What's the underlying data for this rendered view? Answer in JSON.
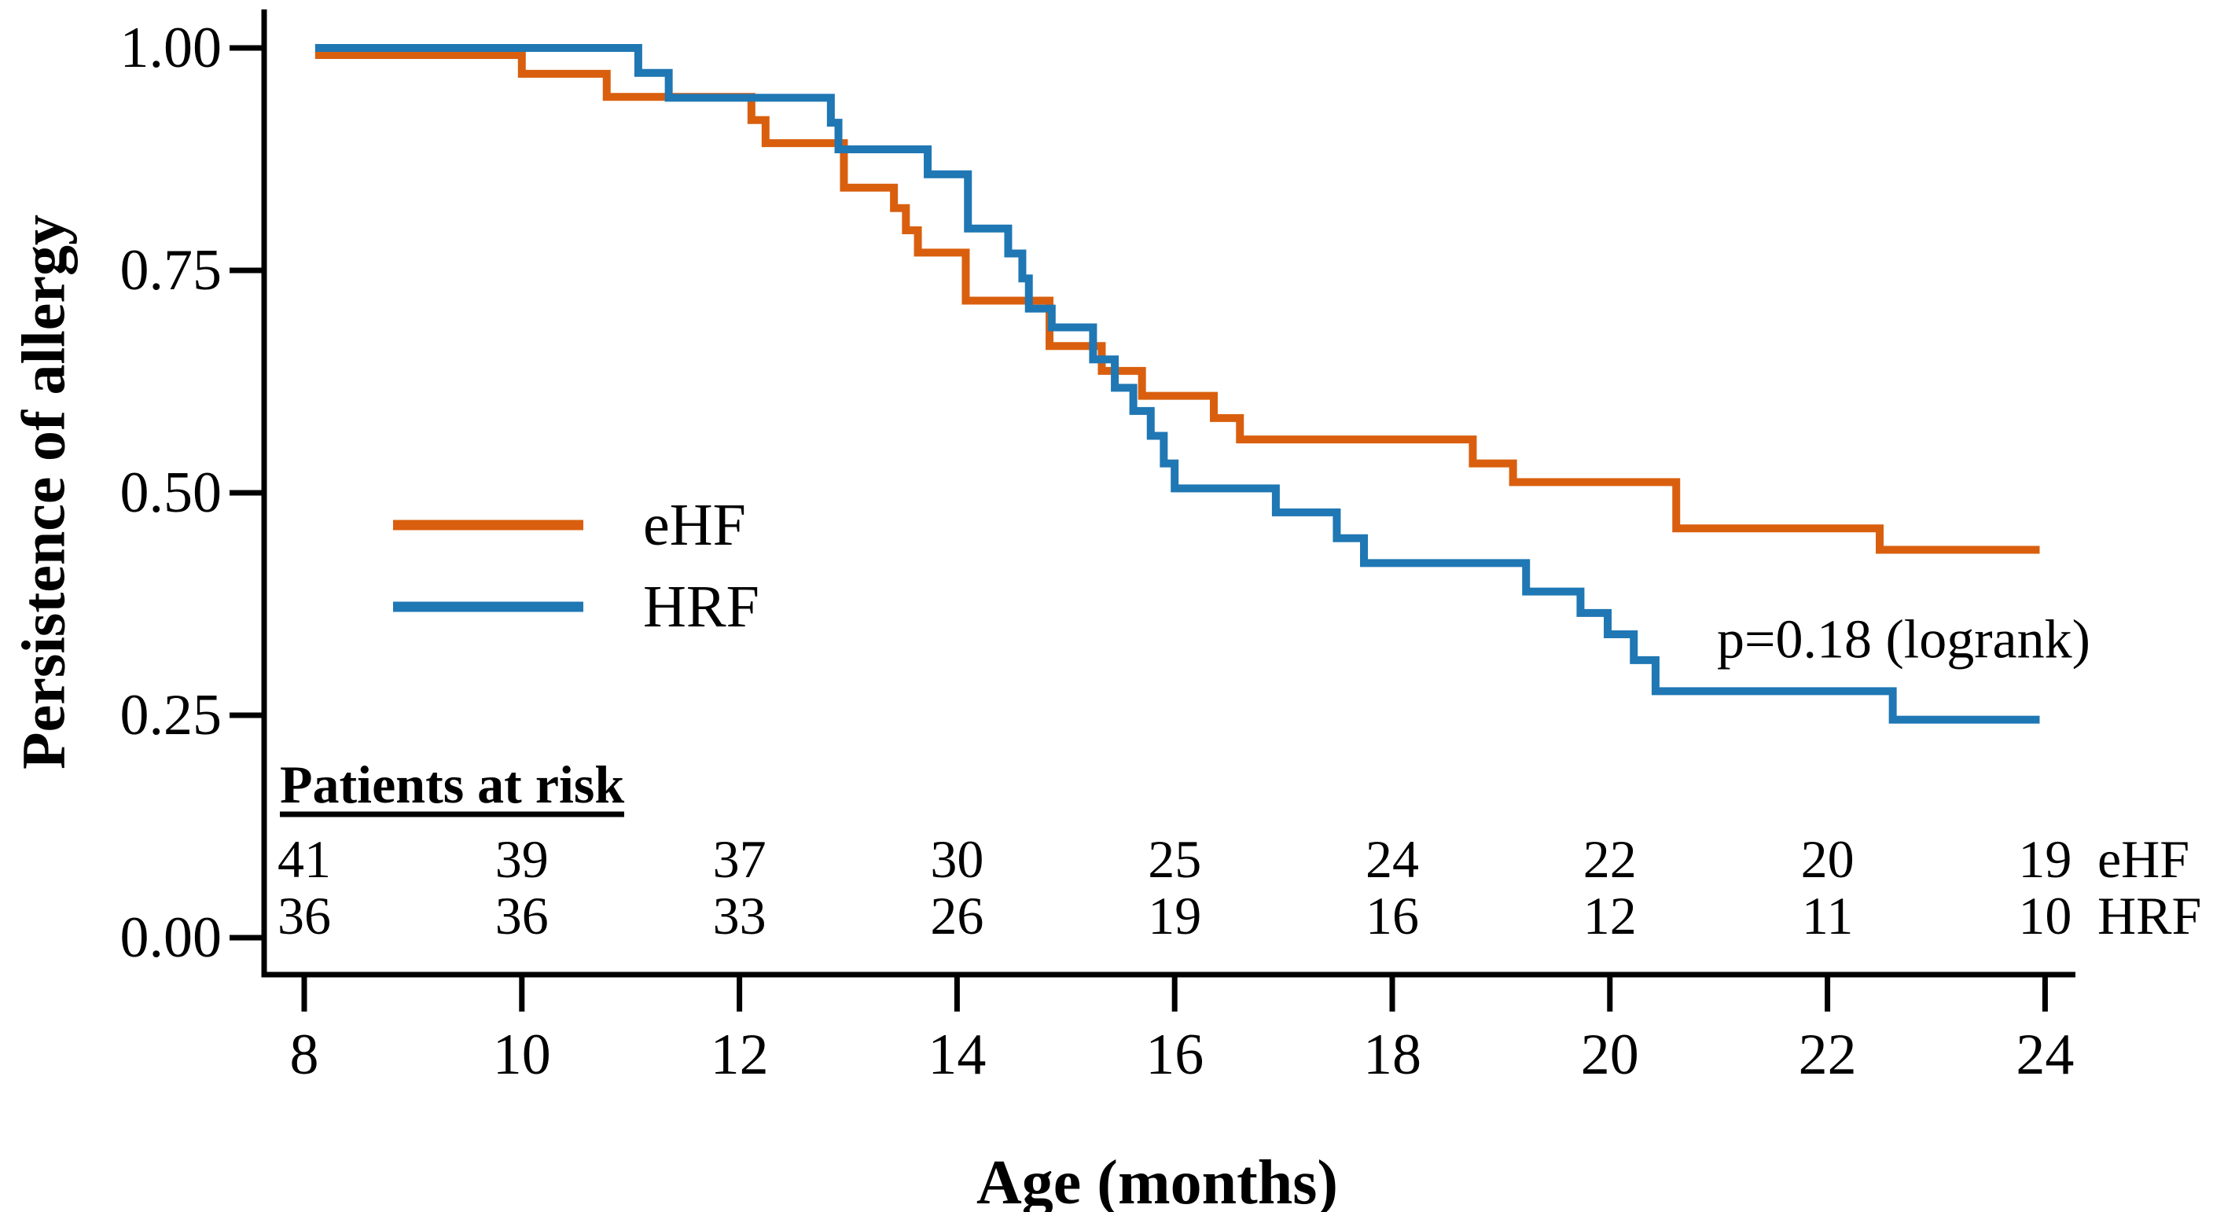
{
  "chart_data": {
    "type": "line",
    "subtype": "kaplan_meier_step_survival",
    "title": "",
    "xlabel": "Age (months)",
    "ylabel": "Persistence of allergy",
    "xlim": [
      7.6,
      24.3
    ],
    "ylim": [
      -0.04,
      1.05
    ],
    "x_ticks": [
      8,
      10,
      12,
      14,
      16,
      18,
      20,
      22,
      24
    ],
    "y_ticks": [
      {
        "value": 0.0,
        "label": "0.00"
      },
      {
        "value": 0.25,
        "label": "0.25"
      },
      {
        "value": 0.5,
        "label": "0.50"
      },
      {
        "value": 0.75,
        "label": "0.75"
      },
      {
        "value": 1.0,
        "label": "1.00"
      }
    ],
    "grid": false,
    "legend": {
      "position": "inside-left-middle",
      "entries": [
        "eHF",
        "HRF"
      ]
    },
    "annotation": {
      "text": "p=0.18 (logrank)",
      "x_month": 22.7,
      "y_value": 0.335
    },
    "series": [
      {
        "name": "eHF",
        "color": "#D95F0E",
        "end_month": 23.95,
        "steps": [
          [
            8.1,
            1.0
          ],
          [
            10.0,
            0.971
          ],
          [
            10.78,
            0.945
          ],
          [
            12.11,
            0.919
          ],
          [
            12.24,
            0.893
          ],
          [
            12.96,
            0.843
          ],
          [
            13.42,
            0.82
          ],
          [
            13.53,
            0.795
          ],
          [
            13.64,
            0.77
          ],
          [
            14.08,
            0.716
          ],
          [
            14.85,
            0.665
          ],
          [
            15.33,
            0.637
          ],
          [
            15.7,
            0.609
          ],
          [
            16.36,
            0.584
          ],
          [
            16.6,
            0.56
          ],
          [
            18.74,
            0.533
          ],
          [
            19.11,
            0.512
          ],
          [
            20.61,
            0.46
          ],
          [
            22.48,
            0.436
          ]
        ]
      },
      {
        "name": "HRF",
        "color": "#1F77B4",
        "end_month": 23.95,
        "steps": [
          [
            8.1,
            1.0
          ],
          [
            11.07,
            0.972
          ],
          [
            11.35,
            0.944
          ],
          [
            12.84,
            0.916
          ],
          [
            12.91,
            0.886
          ],
          [
            13.73,
            0.858
          ],
          [
            14.1,
            0.797
          ],
          [
            14.47,
            0.769
          ],
          [
            14.6,
            0.741
          ],
          [
            14.66,
            0.707
          ],
          [
            14.87,
            0.686
          ],
          [
            15.25,
            0.65
          ],
          [
            15.45,
            0.618
          ],
          [
            15.62,
            0.592
          ],
          [
            15.78,
            0.564
          ],
          [
            15.9,
            0.533
          ],
          [
            16.0,
            0.505
          ],
          [
            16.93,
            0.478
          ],
          [
            17.49,
            0.449
          ],
          [
            17.74,
            0.421
          ],
          [
            19.23,
            0.389
          ],
          [
            19.73,
            0.365
          ],
          [
            19.98,
            0.341
          ],
          [
            20.22,
            0.312
          ],
          [
            20.42,
            0.277
          ],
          [
            22.6,
            0.245
          ]
        ]
      }
    ],
    "at_risk": {
      "title": "Patients at risk",
      "times": [
        8,
        10,
        12,
        14,
        16,
        18,
        20,
        22,
        24
      ],
      "rows": [
        {
          "label": "eHF",
          "counts": [
            41,
            39,
            37,
            30,
            25,
            24,
            22,
            20,
            19
          ]
        },
        {
          "label": "HRF",
          "counts": [
            36,
            36,
            33,
            26,
            19,
            16,
            12,
            11,
            10
          ]
        }
      ]
    }
  }
}
